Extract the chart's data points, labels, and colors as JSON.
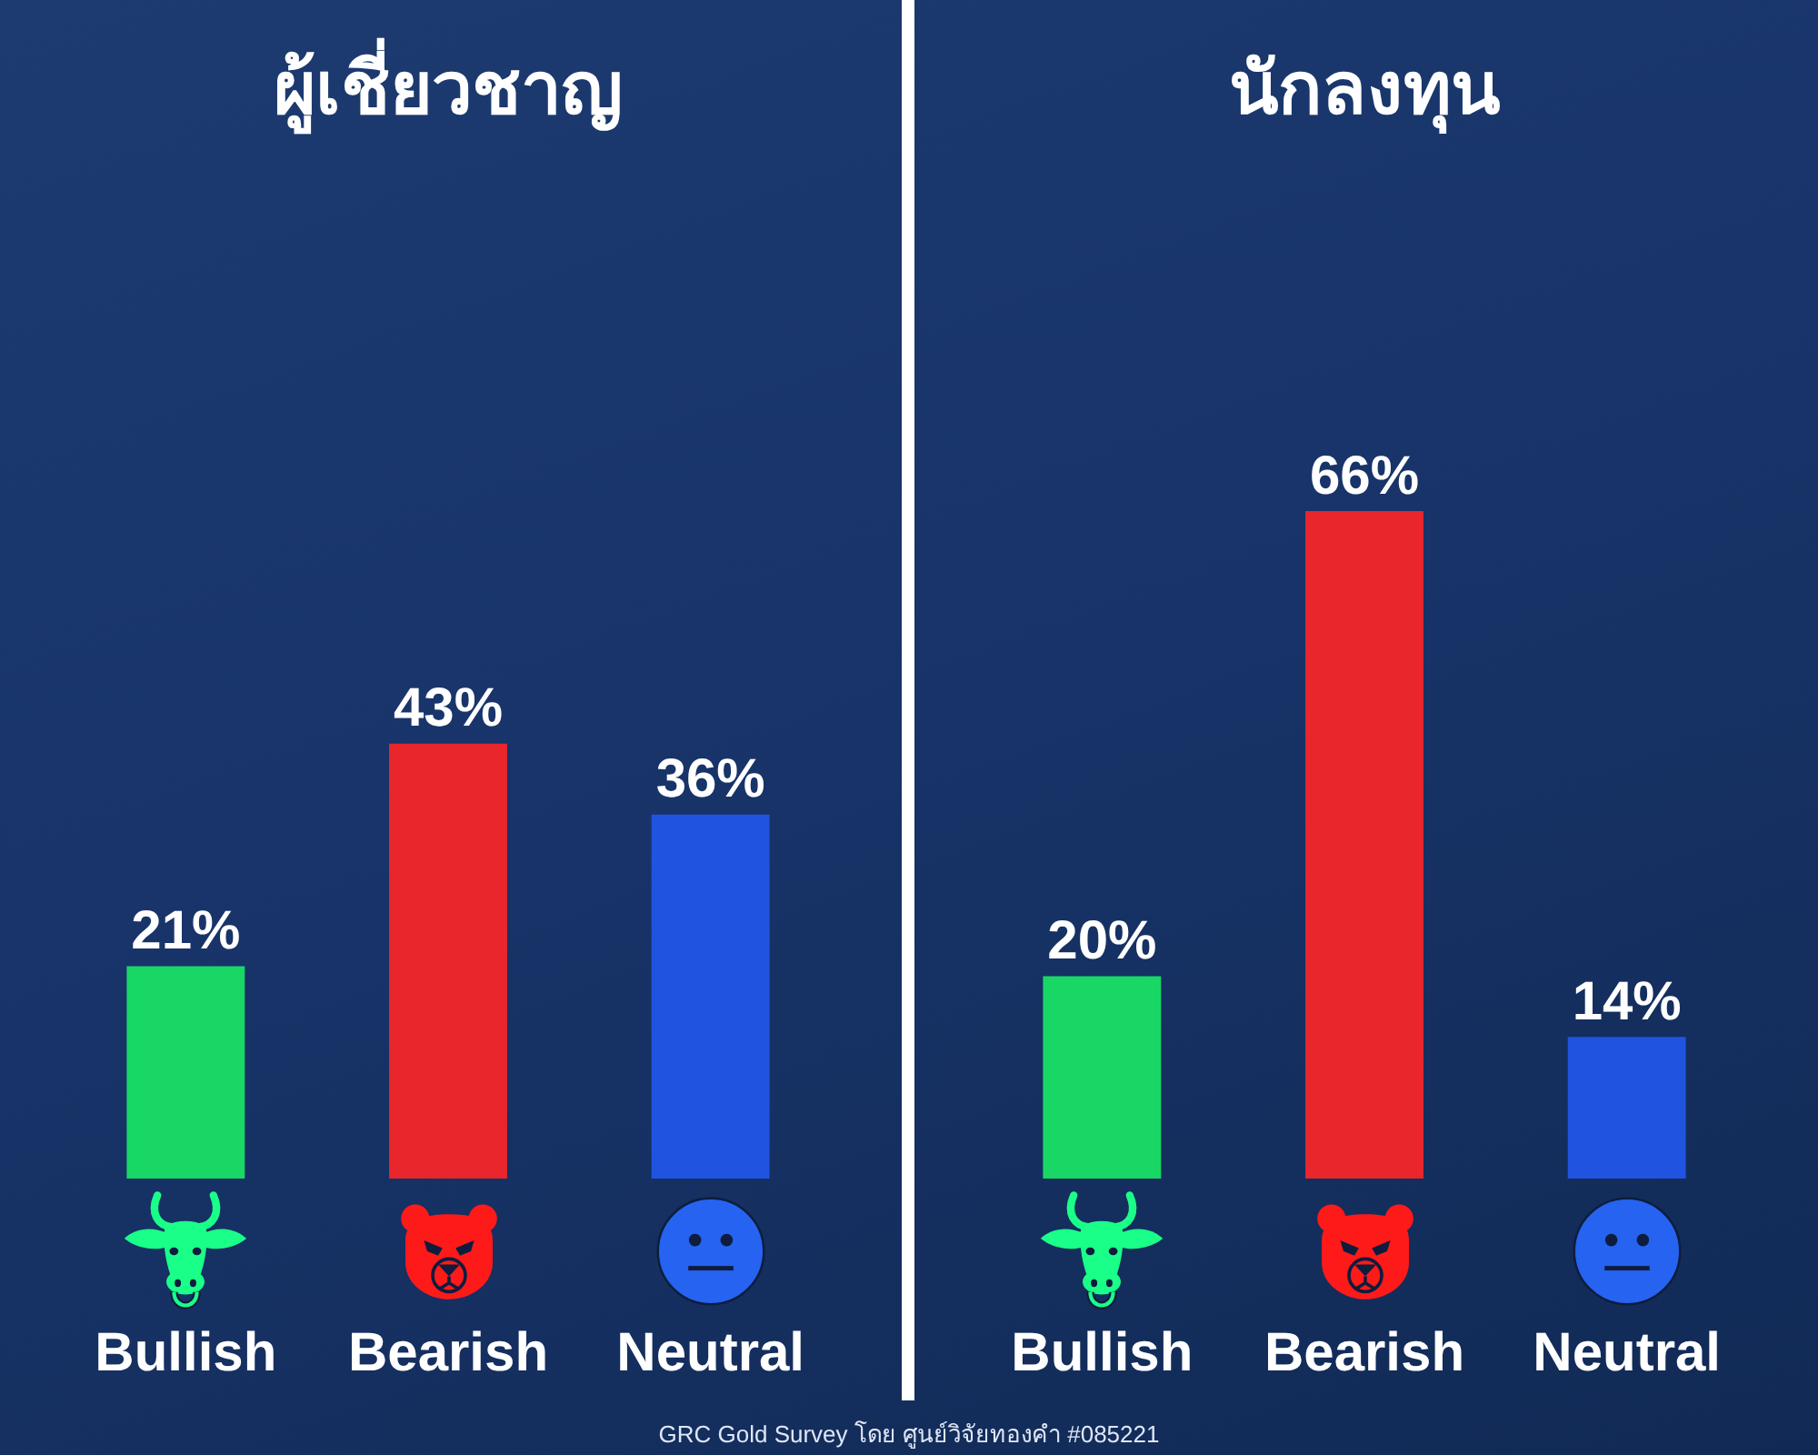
{
  "chart_data": [
    {
      "type": "bar",
      "title": "ผู้เชี่ยวชาญ",
      "categories": [
        "Bullish",
        "Bearish",
        "Neutral"
      ],
      "values": [
        21,
        43,
        36
      ],
      "colors": [
        "#19d765",
        "#e8262c",
        "#2054e0"
      ],
      "value_labels": [
        "21%",
        "43%",
        "36%"
      ],
      "tick_labels": "x",
      "annotations": [
        "GRC Gold Survey โดย ศูนย์วิจัยทองคำ #085221"
      ]
    },
    {
      "type": "bar",
      "title": "นักลงทุน",
      "categories": [
        "Bullish",
        "Bearish",
        "Neutral"
      ],
      "values": [
        20,
        66,
        14
      ],
      "colors": [
        "#19d765",
        "#e8262c",
        "#2054e0"
      ],
      "value_labels": [
        "20%",
        "66%",
        "14%"
      ],
      "tick_labels": "x"
    }
  ]
}
